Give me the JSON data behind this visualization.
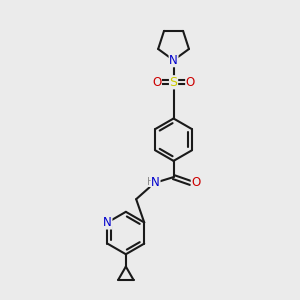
{
  "bg_color": "#ebebeb",
  "bond_color": "#1a1a1a",
  "N_color": "#0000cc",
  "O_color": "#cc0000",
  "S_color": "#cccc00",
  "line_width": 1.5,
  "dbo": 0.055,
  "figsize": [
    3.0,
    3.0
  ],
  "dpi": 100,
  "xlim": [
    0,
    10
  ],
  "ylim": [
    0,
    10
  ]
}
